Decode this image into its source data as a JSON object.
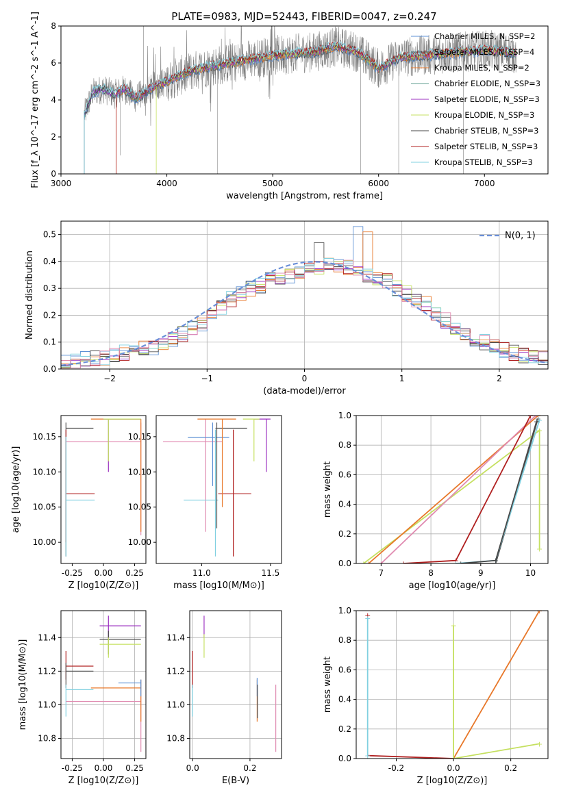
{
  "figure": {
    "title": "PLATE=0983, MJD=52443, FIBERID=0047, z=0.247"
  },
  "colors": {
    "chabrier_miles": "#5b8fd4",
    "salpeter_miles": "#555555",
    "kroupa_miles": "#e8782a",
    "chabrier_elodie": "#5f9e8f",
    "salpeter_elodie": "#9b30c0",
    "kroupa_elodie": "#c5e060",
    "chabrier_stelib": "#474747",
    "salpeter_stelib": "#b02020",
    "kroupa_stelib": "#80d0e0",
    "pink": "#e08ab0",
    "data": "#808080",
    "normal_curve": "#6a8fd8"
  },
  "chart_data": [
    {
      "id": "spectrum",
      "type": "line",
      "title": "PLATE=0983, MJD=52443, FIBERID=0047, z=0.247",
      "xlabel": "wavelength [Angstrom, rest frame]",
      "ylabel": "Flux [f_λ 10^-17 erg cm^-2 s^-1 A^-1]",
      "xlim": [
        3000,
        7600
      ],
      "ylim": [
        0,
        8
      ],
      "xticks": [
        3000,
        4000,
        5000,
        6000,
        7000
      ],
      "yticks": [
        0,
        2,
        4,
        6,
        8
      ],
      "legend_position": "top-right",
      "legend": [
        "Chabrier MILES, N_SSP=2",
        "Salpeter MILES, N_SSP=4",
        "Kroupa MILES, N_SSP=2",
        "Chabrier ELODIE, N_SSP=3",
        "Salpeter ELODIE, N_SSP=3",
        "Kroupa ELODIE, N_SSP=3",
        "Chabrier STELIB, N_SSP=3",
        "Salpeter STELIB, N_SSP=3",
        "Kroupa STELIB, N_SSP=3"
      ],
      "continuum": {
        "x": [
          3220,
          3300,
          3400,
          3500,
          3600,
          3700,
          3800,
          3900,
          4000,
          4200,
          4400,
          4600,
          4800,
          5000,
          5200,
          5400,
          5600,
          5800,
          6000,
          6200,
          6400,
          6600,
          6800,
          7000,
          7200,
          7300
        ],
        "y": [
          3.2,
          4.4,
          4.6,
          4.3,
          4.6,
          4.1,
          4.4,
          4.8,
          5.0,
          5.5,
          5.8,
          6.0,
          6.2,
          6.4,
          6.5,
          6.6,
          6.9,
          6.6,
          5.7,
          6.3,
          6.4,
          6.5,
          6.6,
          6.7,
          6.6,
          6.5
        ]
      }
    },
    {
      "id": "residuals",
      "type": "line",
      "xlabel": "(data-model)/error",
      "ylabel": "Normed distribution",
      "xlim": [
        -2.5,
        2.5
      ],
      "ylim": [
        0,
        0.55
      ],
      "xticks": [
        -2,
        -1,
        0,
        1,
        2
      ],
      "yticks": [
        0.0,
        0.1,
        0.2,
        0.3,
        0.4,
        0.5
      ],
      "grid": true,
      "legend": [
        "N(0, 1)"
      ],
      "legend_position": "top-right",
      "histogram_bins": [
        -2.5,
        -2.4,
        -2.3,
        -2.2,
        -2.1,
        -2.0,
        -1.9,
        -1.8,
        -1.7,
        -1.6,
        -1.5,
        -1.4,
        -1.3,
        -1.2,
        -1.1,
        -1.0,
        -0.9,
        -0.8,
        -0.7,
        -0.6,
        -0.5,
        -0.4,
        -0.3,
        -0.2,
        -0.1,
        0.0,
        0.1,
        0.2,
        0.3,
        0.4,
        0.5,
        0.6,
        0.7,
        0.8,
        0.9,
        1.0,
        1.1,
        1.2,
        1.3,
        1.4,
        1.5,
        1.6,
        1.7,
        1.8,
        1.9,
        2.0,
        2.1,
        2.2,
        2.3,
        2.4
      ],
      "histogram_values": [
        0.03,
        0.03,
        0.04,
        0.04,
        0.04,
        0.05,
        0.06,
        0.07,
        0.08,
        0.08,
        0.09,
        0.11,
        0.13,
        0.15,
        0.17,
        0.2,
        0.23,
        0.26,
        0.28,
        0.3,
        0.31,
        0.33,
        0.34,
        0.35,
        0.36,
        0.37,
        0.38,
        0.39,
        0.39,
        0.38,
        0.36,
        0.35,
        0.34,
        0.33,
        0.3,
        0.28,
        0.26,
        0.24,
        0.21,
        0.18,
        0.15,
        0.13,
        0.11,
        0.1,
        0.08,
        0.07,
        0.06,
        0.05,
        0.04,
        0.04
      ],
      "spikes": [
        {
          "x": 0.5,
          "y": 0.53
        },
        {
          "x": 0.15,
          "y": 0.47
        },
        {
          "x": 0.55,
          "y": 0.51
        }
      ]
    },
    {
      "id": "age-Z",
      "type": "scatter",
      "xlabel": "Z [log10(Z/Z⊙)]",
      "ylabel": "age  [log10(age/yr)]",
      "xlim": [
        -0.34,
        0.34
      ],
      "ylim": [
        9.97,
        10.18
      ],
      "xticks": [
        -0.25,
        0.0,
        0.25
      ],
      "xticklabels": [
        "-0.25",
        "0.00",
        "0.25"
      ],
      "yticks": [
        10.0,
        10.05,
        10.1,
        10.15
      ],
      "yticklabels": [
        "10.00",
        "10.05",
        "10.10",
        "10.15"
      ]
    },
    {
      "id": "age-mass",
      "type": "scatter",
      "xlabel": "mass [log10(M/M⊙)]",
      "xlim": [
        10.67,
        11.58
      ],
      "ylim": [
        9.97,
        10.18
      ],
      "xticks": [
        11.0,
        11.5
      ],
      "xticklabels": [
        "11.0",
        "11.5"
      ],
      "yticks": [
        10.0,
        10.05,
        10.1,
        10.15
      ],
      "yticklabels": [
        "10.00",
        "10.05",
        "10.10",
        "10.15"
      ]
    },
    {
      "id": "massweight-age",
      "type": "line",
      "xlabel": "age  [log10(age/yr)]",
      "ylabel": "mass weight",
      "xlim": [
        6.5,
        10.35
      ],
      "ylim": [
        0,
        1
      ],
      "xticks": [
        7,
        8,
        9,
        10
      ],
      "yticks": [
        0.0,
        0.2,
        0.4,
        0.6,
        0.8,
        1.0
      ],
      "grid": true
    },
    {
      "id": "mass-Z",
      "type": "scatter",
      "xlabel": "Z [log10(Z/Z⊙)]",
      "ylabel": "mass [log10(M/M⊙)]",
      "xlim": [
        -0.34,
        0.34
      ],
      "ylim": [
        10.68,
        11.56
      ],
      "xticks": [
        -0.25,
        0.0,
        0.25
      ],
      "xticklabels": [
        "-0.25",
        "0.00",
        "0.25"
      ],
      "yticks": [
        10.8,
        11.0,
        11.2,
        11.4
      ],
      "yticklabels": [
        "10.8",
        "11.0",
        "11.2",
        "11.4"
      ],
      "grid": true
    },
    {
      "id": "mass-EBV",
      "type": "scatter",
      "xlabel": "E(B-V)",
      "xlim": [
        -0.01,
        0.31
      ],
      "ylim": [
        10.68,
        11.56
      ],
      "xticks": [
        0.0,
        0.2
      ],
      "xticklabels": [
        "0.0",
        "0.2"
      ],
      "yticks": [
        10.8,
        11.0,
        11.2,
        11.4
      ],
      "yticklabels": [
        "10.8",
        "11.0",
        "11.2",
        "11.4"
      ],
      "grid": true
    },
    {
      "id": "massweight-Z",
      "type": "line",
      "xlabel": "Z [log10(Z/Z⊙)]",
      "ylabel": "mass weight",
      "xlim": [
        -0.34,
        0.33
      ],
      "ylim": [
        0,
        1
      ],
      "xticks": [
        -0.2,
        0.0,
        0.2
      ],
      "xticklabels": [
        "-0.2",
        "0.0",
        "0.2"
      ],
      "yticks": [
        0.0,
        0.2,
        0.4,
        0.6,
        0.8,
        1.0
      ],
      "grid": true
    }
  ]
}
